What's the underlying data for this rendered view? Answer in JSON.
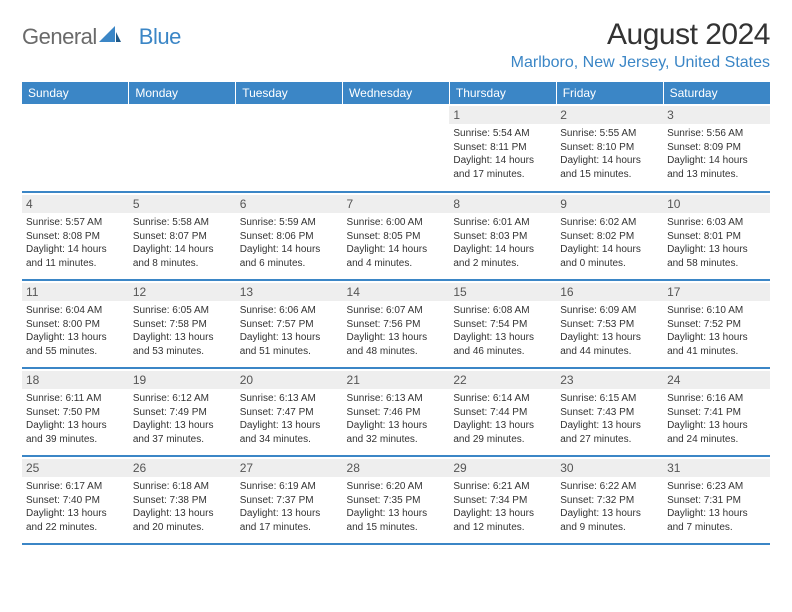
{
  "brand": {
    "part1": "General",
    "part2": "Blue"
  },
  "title": "August 2024",
  "location": "Marlboro, New Jersey, United States",
  "colors": {
    "header_bg": "#3b86c6",
    "header_text": "#ffffff",
    "daynum_bg": "#eeeeee",
    "text": "#333333",
    "brand_gray": "#6a6a6a",
    "brand_blue": "#3b86c6"
  },
  "weekdays": [
    "Sunday",
    "Monday",
    "Tuesday",
    "Wednesday",
    "Thursday",
    "Friday",
    "Saturday"
  ],
  "weeks": [
    [
      null,
      null,
      null,
      null,
      {
        "n": "1",
        "sr": "5:54 AM",
        "ss": "8:11 PM",
        "dl": "14 hours and 17 minutes."
      },
      {
        "n": "2",
        "sr": "5:55 AM",
        "ss": "8:10 PM",
        "dl": "14 hours and 15 minutes."
      },
      {
        "n": "3",
        "sr": "5:56 AM",
        "ss": "8:09 PM",
        "dl": "14 hours and 13 minutes."
      }
    ],
    [
      {
        "n": "4",
        "sr": "5:57 AM",
        "ss": "8:08 PM",
        "dl": "14 hours and 11 minutes."
      },
      {
        "n": "5",
        "sr": "5:58 AM",
        "ss": "8:07 PM",
        "dl": "14 hours and 8 minutes."
      },
      {
        "n": "6",
        "sr": "5:59 AM",
        "ss": "8:06 PM",
        "dl": "14 hours and 6 minutes."
      },
      {
        "n": "7",
        "sr": "6:00 AM",
        "ss": "8:05 PM",
        "dl": "14 hours and 4 minutes."
      },
      {
        "n": "8",
        "sr": "6:01 AM",
        "ss": "8:03 PM",
        "dl": "14 hours and 2 minutes."
      },
      {
        "n": "9",
        "sr": "6:02 AM",
        "ss": "8:02 PM",
        "dl": "14 hours and 0 minutes."
      },
      {
        "n": "10",
        "sr": "6:03 AM",
        "ss": "8:01 PM",
        "dl": "13 hours and 58 minutes."
      }
    ],
    [
      {
        "n": "11",
        "sr": "6:04 AM",
        "ss": "8:00 PM",
        "dl": "13 hours and 55 minutes."
      },
      {
        "n": "12",
        "sr": "6:05 AM",
        "ss": "7:58 PM",
        "dl": "13 hours and 53 minutes."
      },
      {
        "n": "13",
        "sr": "6:06 AM",
        "ss": "7:57 PM",
        "dl": "13 hours and 51 minutes."
      },
      {
        "n": "14",
        "sr": "6:07 AM",
        "ss": "7:56 PM",
        "dl": "13 hours and 48 minutes."
      },
      {
        "n": "15",
        "sr": "6:08 AM",
        "ss": "7:54 PM",
        "dl": "13 hours and 46 minutes."
      },
      {
        "n": "16",
        "sr": "6:09 AM",
        "ss": "7:53 PM",
        "dl": "13 hours and 44 minutes."
      },
      {
        "n": "17",
        "sr": "6:10 AM",
        "ss": "7:52 PM",
        "dl": "13 hours and 41 minutes."
      }
    ],
    [
      {
        "n": "18",
        "sr": "6:11 AM",
        "ss": "7:50 PM",
        "dl": "13 hours and 39 minutes."
      },
      {
        "n": "19",
        "sr": "6:12 AM",
        "ss": "7:49 PM",
        "dl": "13 hours and 37 minutes."
      },
      {
        "n": "20",
        "sr": "6:13 AM",
        "ss": "7:47 PM",
        "dl": "13 hours and 34 minutes."
      },
      {
        "n": "21",
        "sr": "6:13 AM",
        "ss": "7:46 PM",
        "dl": "13 hours and 32 minutes."
      },
      {
        "n": "22",
        "sr": "6:14 AM",
        "ss": "7:44 PM",
        "dl": "13 hours and 29 minutes."
      },
      {
        "n": "23",
        "sr": "6:15 AM",
        "ss": "7:43 PM",
        "dl": "13 hours and 27 minutes."
      },
      {
        "n": "24",
        "sr": "6:16 AM",
        "ss": "7:41 PM",
        "dl": "13 hours and 24 minutes."
      }
    ],
    [
      {
        "n": "25",
        "sr": "6:17 AM",
        "ss": "7:40 PM",
        "dl": "13 hours and 22 minutes."
      },
      {
        "n": "26",
        "sr": "6:18 AM",
        "ss": "7:38 PM",
        "dl": "13 hours and 20 minutes."
      },
      {
        "n": "27",
        "sr": "6:19 AM",
        "ss": "7:37 PM",
        "dl": "13 hours and 17 minutes."
      },
      {
        "n": "28",
        "sr": "6:20 AM",
        "ss": "7:35 PM",
        "dl": "13 hours and 15 minutes."
      },
      {
        "n": "29",
        "sr": "6:21 AM",
        "ss": "7:34 PM",
        "dl": "13 hours and 12 minutes."
      },
      {
        "n": "30",
        "sr": "6:22 AM",
        "ss": "7:32 PM",
        "dl": "13 hours and 9 minutes."
      },
      {
        "n": "31",
        "sr": "6:23 AM",
        "ss": "7:31 PM",
        "dl": "13 hours and 7 minutes."
      }
    ]
  ],
  "labels": {
    "sunrise": "Sunrise:",
    "sunset": "Sunset:",
    "daylight": "Daylight:"
  }
}
